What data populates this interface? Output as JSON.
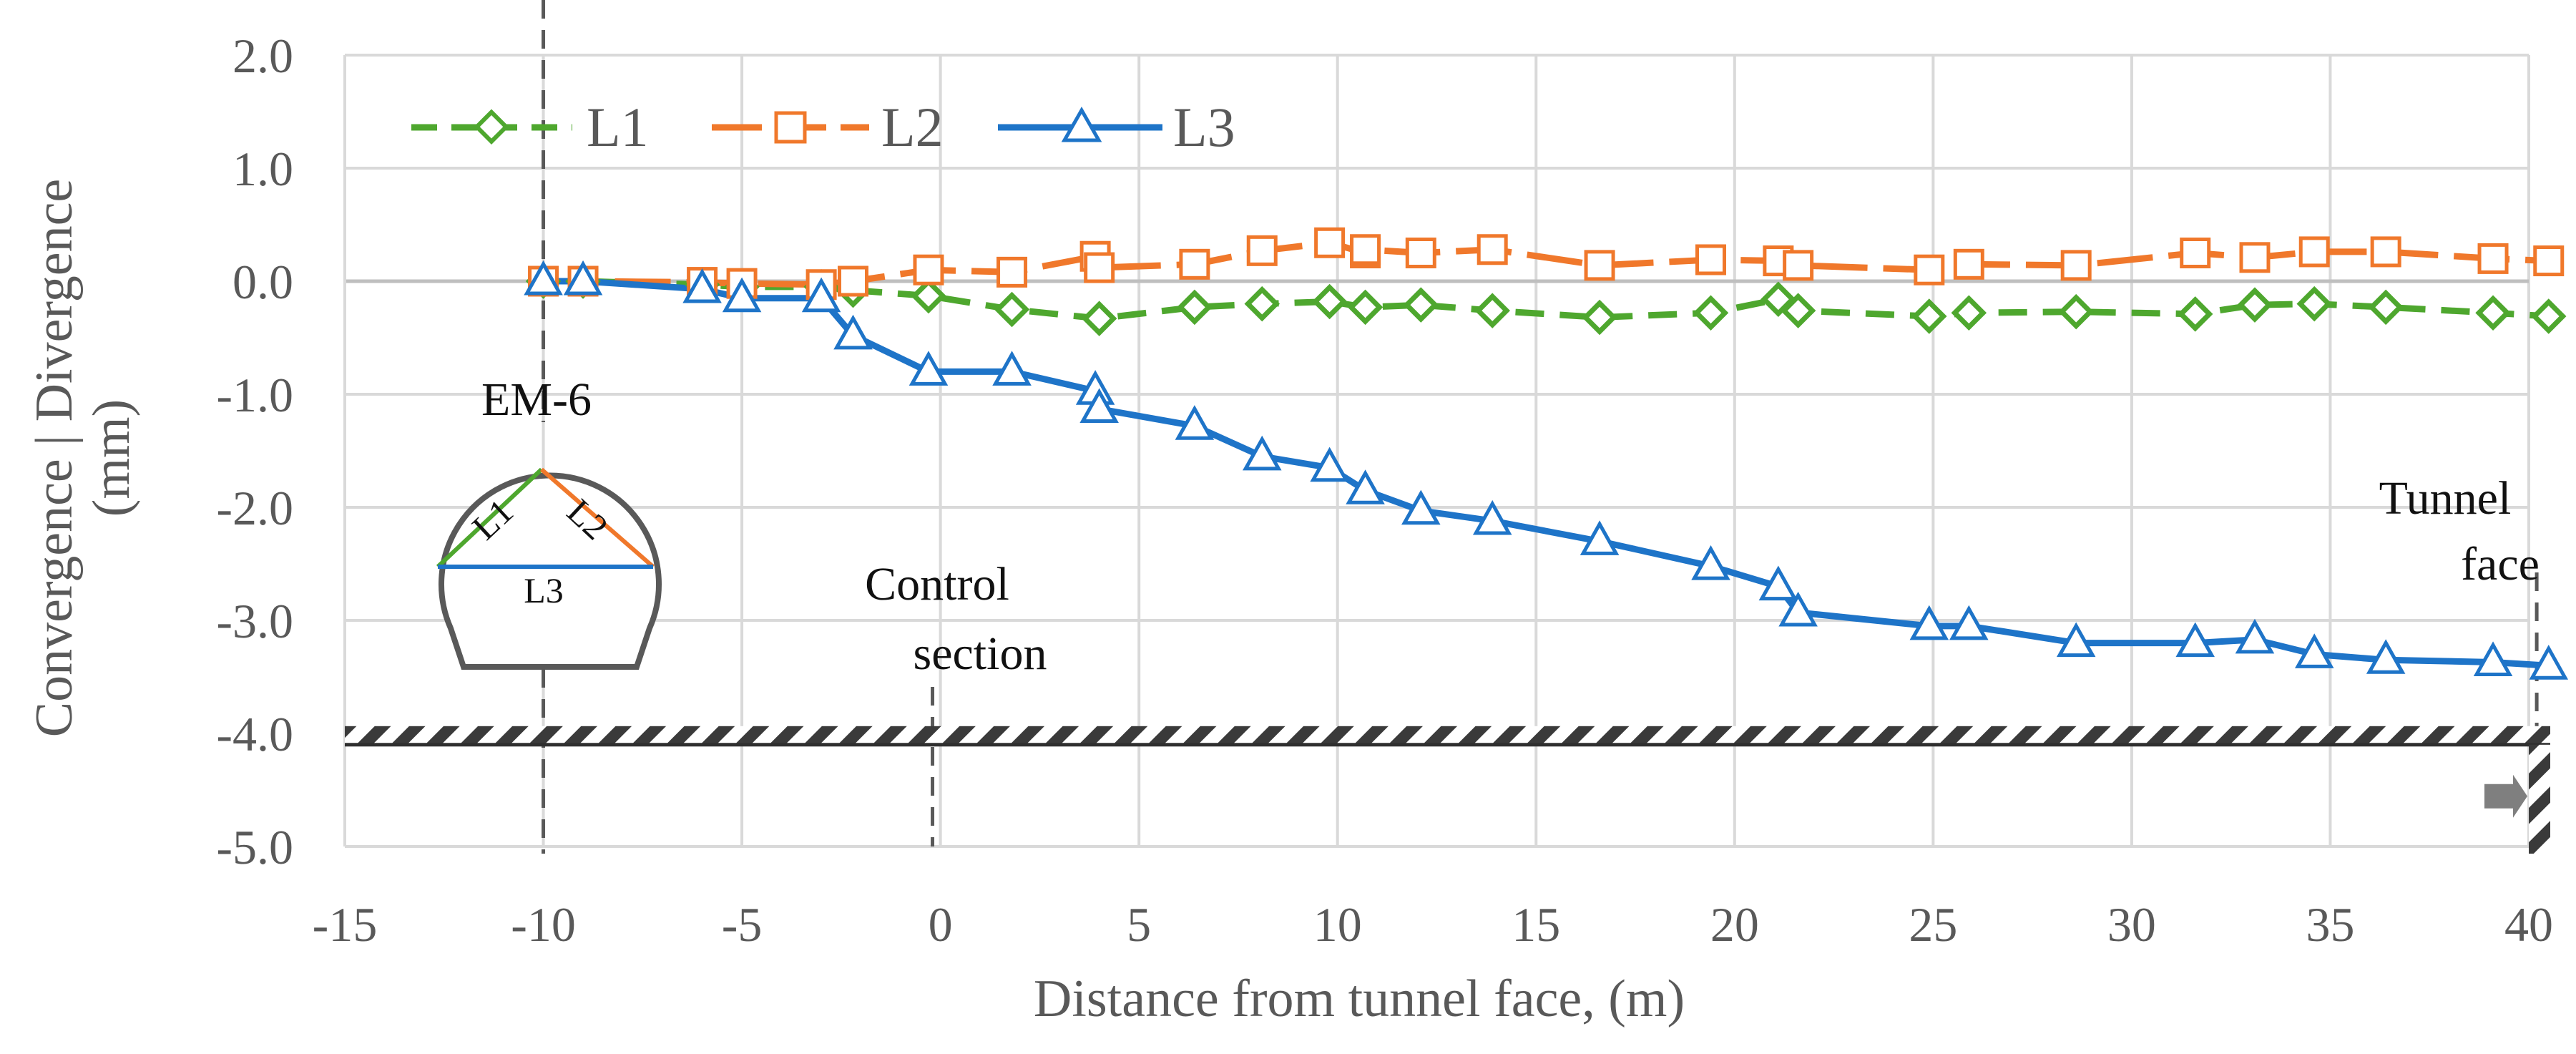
{
  "chart_data": {
    "type": "line",
    "xlabel": "Distance from tunnel face, (m)",
    "ylabel_line1": "Convergence | Divergence",
    "ylabel_line2": "(mm)",
    "xlim": [
      -15,
      40
    ],
    "ylim": [
      -5,
      2
    ],
    "x_ticks": [
      -15,
      -10,
      -5,
      0,
      5,
      10,
      15,
      20,
      25,
      30,
      35,
      40
    ],
    "x_tick_labels": [
      "-15",
      "-10",
      "-5",
      "0",
      "5",
      "10",
      "15",
      "20",
      "25",
      "30",
      "35",
      "40"
    ],
    "y_ticks": [
      2,
      1,
      0,
      -1,
      -2,
      -3,
      -4,
      -5
    ],
    "y_tick_labels": [
      "2.0",
      "1.0",
      "0.0",
      "-1.0",
      "-2.0",
      "-3.0",
      "-4.0",
      "-5.0"
    ],
    "grid": true,
    "legend_position": "top-left",
    "series": [
      {
        "name": "L1",
        "color": "#4EA72E",
        "dash": "dashed",
        "marker": "diamond",
        "points": [
          [
            -10,
            0.0
          ],
          [
            -9,
            0.0
          ],
          [
            -6,
            -0.03
          ],
          [
            -5,
            -0.05
          ],
          [
            -3,
            -0.05
          ],
          [
            -2.2,
            -0.08
          ],
          [
            -0.3,
            -0.13
          ],
          [
            1.8,
            -0.25
          ],
          [
            4,
            -0.33
          ],
          [
            6.4,
            -0.23
          ],
          [
            8.1,
            -0.2
          ],
          [
            9.8,
            -0.18
          ],
          [
            10.7,
            -0.23
          ],
          [
            12.1,
            -0.21
          ],
          [
            13.9,
            -0.26
          ],
          [
            16.6,
            -0.32
          ],
          [
            19.4,
            -0.28
          ],
          [
            21.1,
            -0.16
          ],
          [
            21.6,
            -0.26
          ],
          [
            24.9,
            -0.31
          ],
          [
            25.9,
            -0.28
          ],
          [
            28.6,
            -0.27
          ],
          [
            31.6,
            -0.29
          ],
          [
            33.1,
            -0.21
          ],
          [
            34.6,
            -0.2
          ],
          [
            36.4,
            -0.23
          ],
          [
            39.1,
            -0.28
          ],
          [
            40.5,
            -0.31
          ]
        ]
      },
      {
        "name": "L2",
        "color": "#F0782B",
        "dash": "long-dash",
        "marker": "square",
        "points": [
          [
            -10,
            0.0
          ],
          [
            -9,
            0.0
          ],
          [
            -6,
            -0.01
          ],
          [
            -5,
            -0.02
          ],
          [
            -3,
            -0.03
          ],
          [
            -2.2,
            0.0
          ],
          [
            -0.3,
            0.1
          ],
          [
            1.8,
            0.08
          ],
          [
            3.9,
            0.22
          ],
          [
            4,
            0.12
          ],
          [
            6.4,
            0.15
          ],
          [
            8.1,
            0.27
          ],
          [
            9.8,
            0.34
          ],
          [
            10.7,
            0.25
          ],
          [
            10.7,
            0.28
          ],
          [
            12.1,
            0.25
          ],
          [
            13.9,
            0.28
          ],
          [
            16.6,
            0.14
          ],
          [
            19.4,
            0.19
          ],
          [
            21.1,
            0.18
          ],
          [
            21.6,
            0.14
          ],
          [
            24.9,
            0.1
          ],
          [
            25.9,
            0.15
          ],
          [
            28.6,
            0.14
          ],
          [
            31.6,
            0.25
          ],
          [
            33.1,
            0.21
          ],
          [
            34.6,
            0.26
          ],
          [
            36.4,
            0.26
          ],
          [
            39.1,
            0.2
          ],
          [
            40.5,
            0.18
          ]
        ]
      },
      {
        "name": "L3",
        "color": "#1E74C8",
        "dash": "solid",
        "marker": "triangle",
        "points": [
          [
            -10,
            0.0
          ],
          [
            -9,
            0.0
          ],
          [
            -6,
            -0.07
          ],
          [
            -5,
            -0.15
          ],
          [
            -3,
            -0.15
          ],
          [
            -2.2,
            -0.48
          ],
          [
            -0.3,
            -0.8
          ],
          [
            1.8,
            -0.8
          ],
          [
            3.9,
            -0.97
          ],
          [
            4,
            -1.13
          ],
          [
            6.4,
            -1.28
          ],
          [
            8.1,
            -1.55
          ],
          [
            9.8,
            -1.65
          ],
          [
            10.7,
            -1.85
          ],
          [
            12.1,
            -2.03
          ],
          [
            13.9,
            -2.12
          ],
          [
            16.6,
            -2.3
          ],
          [
            19.4,
            -2.52
          ],
          [
            21.1,
            -2.7
          ],
          [
            21.6,
            -2.93
          ],
          [
            24.9,
            -3.05
          ],
          [
            25.9,
            -3.05
          ],
          [
            28.6,
            -3.2
          ],
          [
            31.6,
            -3.2
          ],
          [
            33.1,
            -3.17
          ],
          [
            34.6,
            -3.3
          ],
          [
            36.4,
            -3.35
          ],
          [
            39.1,
            -3.37
          ],
          [
            40.5,
            -3.4
          ]
        ]
      }
    ],
    "reference_lines": [
      {
        "x": -10,
        "label": "EM-6"
      },
      {
        "x": -0.2,
        "label_line1": "Control",
        "label_line2": "section"
      },
      {
        "x": 40.2,
        "label_line1": "Tunnel",
        "label_line2": "face"
      }
    ],
    "hatched_level": -4.1,
    "inset": {
      "labels": [
        "L1",
        "L2",
        "L3"
      ]
    }
  }
}
